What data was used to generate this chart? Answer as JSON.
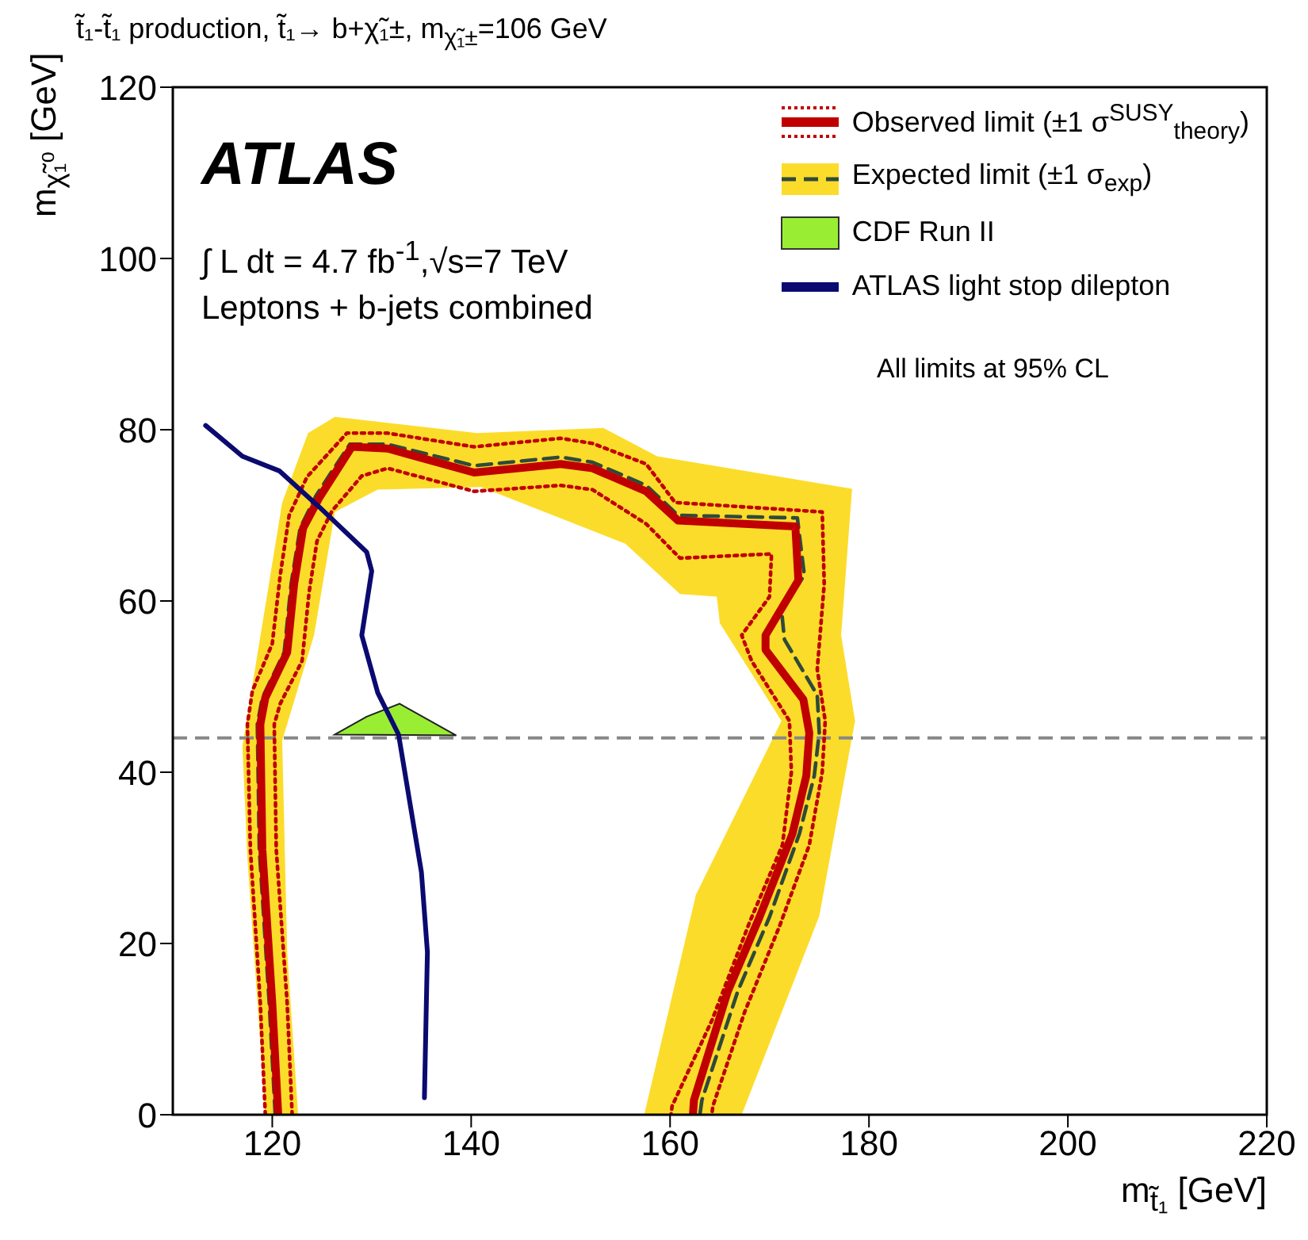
{
  "chart_data": {
    "type": "line",
    "title": "t̃₁-t̃₁ production, t̃₁→ b+χ̃₁±, m$_{χ̃₁±}$=106 GeV",
    "xlabel": "m$_{t̃₁}$ [GeV]",
    "ylabel": "m$_{χ̃₁⁰}$ [GeV]",
    "xlim": [
      110,
      220
    ],
    "xticks": [
      120,
      140,
      160,
      180,
      200,
      220
    ],
    "ylim": [
      0,
      120
    ],
    "yticks": [
      0,
      20,
      40,
      60,
      80,
      100,
      120
    ],
    "legend": "top right",
    "grid": false,
    "annotations": [
      "ATLAS",
      "∫ L dt = 4.7 fb$^{-1}$,√s=7 TeV",
      "Leptons + b-jets combined",
      "All limits at 95% CL"
    ],
    "ref_lines": [
      {
        "axis": "y",
        "value": 44,
        "color": "#888888",
        "line_style": "dashed"
      }
    ],
    "series": [
      {
        "type": "area",
        "color": "#fcdc2a",
        "x": [
          119.3,
          117.5,
          117,
          118.4,
          121,
          123.6,
          126.3,
          140.6,
          153.3,
          158.7,
          178.3,
          177.2,
          178.6,
          175,
          167.2,
          157.4,
          162.6,
          171.2,
          165,
          164.7,
          161,
          155.5,
          141,
          130.6,
          126.3,
          124.2,
          121,
          121.5,
          122.6
        ],
        "values": [
          0,
          30,
          43,
          53,
          71.5,
          79.6,
          81.5,
          79.6,
          80.2,
          76.9,
          73.1,
          56,
          46,
          23.2,
          0,
          0,
          25.7,
          46,
          57.4,
          60.5,
          60.8,
          66.7,
          73.3,
          73,
          70.4,
          56,
          43.7,
          19,
          0
        ]
      },
      {
        "color": "#2f4a3a",
        "line_style": "dashed",
        "name": "Expected limit (±1 σ$_{exp}$)",
        "x": [
          120.3,
          119.7,
          118.7,
          118.5,
          119,
          121.2,
          121.9,
          122.8,
          124.4,
          127.8,
          131.6,
          140.3,
          149,
          152.2,
          157.6,
          160.8,
          172.8,
          173.5,
          171.2,
          171.5,
          174.8,
          175,
          174.5,
          173,
          170,
          166.8,
          163.2,
          163
        ],
        "values": [
          0,
          13,
          31,
          45.6,
          48.7,
          54,
          62,
          68.5,
          72.3,
          78.3,
          78.3,
          75.8,
          76.8,
          76.2,
          73.5,
          70,
          69.7,
          63,
          59,
          55.5,
          49,
          44.6,
          39.6,
          32.8,
          23.1,
          14.4,
          1.7,
          0
        ]
      },
      {
        "color": "#c00000",
        "line_style": "dotted",
        "x": [
          119.3,
          118.8,
          117.8,
          117.5,
          118,
          120,
          120.8,
          121.7,
          123.5,
          127.5,
          131.6,
          140.3,
          149,
          152.2,
          157.6,
          160.5,
          175.3,
          175.5,
          174.8,
          175.6,
          175.3,
          174,
          171,
          167.5,
          164.3,
          164.2
        ],
        "values": [
          0,
          13,
          31,
          45.6,
          49.5,
          55,
          63,
          70,
          74.5,
          79.6,
          79.6,
          78,
          79,
          78.4,
          76,
          71.5,
          70.4,
          62,
          52,
          46,
          40,
          31.5,
          22,
          12,
          1,
          0
        ]
      },
      {
        "color": "#c00000",
        "line_style": "dotted",
        "x": [
          122,
          121.5,
          120.4,
          120.2,
          120.8,
          123,
          123.7,
          124.5,
          126,
          129,
          131.6,
          140.3,
          149,
          152.2,
          157.6,
          161,
          170.2,
          170,
          167.2,
          168.2,
          172,
          172.2,
          171.3,
          168,
          164.2,
          160.2,
          160.1
        ],
        "values": [
          0,
          13,
          31,
          45.6,
          48,
          53,
          61,
          67,
          70.5,
          74.6,
          75.5,
          72.8,
          73.5,
          73,
          69,
          65,
          65.5,
          60.5,
          56,
          53,
          46,
          40,
          31.5,
          22.5,
          11,
          1,
          0
        ]
      },
      {
        "color": "#c00000",
        "line_style": "solid",
        "name": "Observed limit (±1 σ$^{SUSY}$$_{theory}$)",
        "x": [
          120.6,
          120,
          119,
          118.8,
          119.3,
          121.5,
          122.2,
          123.1,
          124.7,
          128,
          131.6,
          140.3,
          149,
          152.2,
          157.6,
          160.8,
          172.6,
          172.9,
          169.6,
          169.6,
          173.4,
          174,
          173.7,
          172.3,
          169,
          165.8,
          162.4,
          162.3
        ],
        "values": [
          0,
          13,
          31,
          45.6,
          48.7,
          54,
          62,
          68.5,
          72,
          78,
          77.8,
          75,
          76,
          75.5,
          72.8,
          69.4,
          68.7,
          62.4,
          56,
          54.3,
          48.5,
          44.6,
          39.6,
          32.8,
          23.1,
          14.4,
          1.7,
          0
        ]
      },
      {
        "type": "area",
        "color": "#99ee33",
        "name": "CDF Run II",
        "x": [
          126.3,
          129.5,
          132.8,
          138.5
        ],
        "values": [
          44.4,
          46.5,
          48,
          44.3
        ]
      },
      {
        "color": "#0a0a70",
        "line_style": "solid",
        "name": "ATLAS light stop dilepton",
        "x": [
          113.3,
          117,
          120.7,
          124.7,
          129.5,
          130,
          129,
          130.6,
          132.7,
          135,
          135.6,
          135.3
        ],
        "values": [
          80.5,
          76.9,
          75.2,
          71,
          65.7,
          63.5,
          56,
          49.3,
          44.4,
          28.3,
          19,
          2
        ]
      }
    ]
  }
}
